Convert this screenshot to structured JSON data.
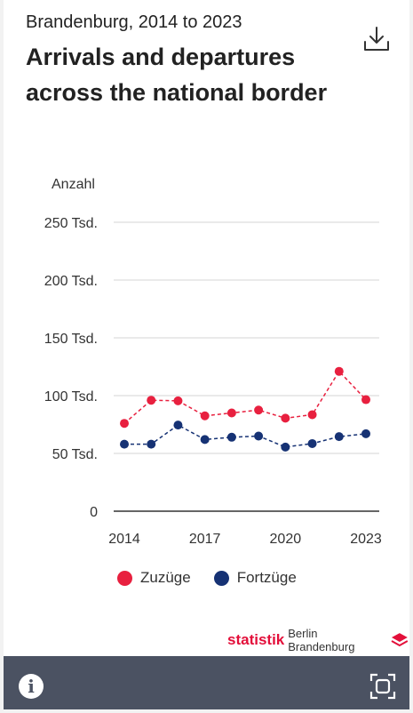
{
  "header": {
    "subtitle": "Brandenburg, 2014 to 2023",
    "title": "Arrivals and departures across the national border"
  },
  "chart_data": {
    "type": "line",
    "unit_label": "Anzahl",
    "x": [
      2014,
      2015,
      2016,
      2017,
      2018,
      2019,
      2020,
      2021,
      2022,
      2023
    ],
    "x_tick_labels": [
      "2014",
      "2017",
      "2020",
      "2023"
    ],
    "x_ticks": [
      2014,
      2017,
      2020,
      2023
    ],
    "y_ticks": [
      0,
      50000,
      100000,
      150000,
      200000,
      250000
    ],
    "y_tick_labels": [
      "0",
      "50 Tsd.",
      "100 Tsd.",
      "150 Tsd.",
      "200 Tsd.",
      "250 Tsd."
    ],
    "ylim": [
      0,
      250000
    ],
    "grid": true,
    "legend_position": "bottom",
    "series": [
      {
        "name": "Zuzüge",
        "color": "#e8203f",
        "values": [
          76000,
          96000,
          95500,
          82500,
          85000,
          87500,
          80500,
          83500,
          121000,
          96500
        ]
      },
      {
        "name": "Fortzüge",
        "color": "#163274",
        "values": [
          58000,
          58000,
          74500,
          62000,
          64000,
          65000,
          55500,
          58500,
          64500,
          67000
        ]
      }
    ]
  },
  "logo": {
    "brand": "statistik",
    "region": "Berlin Brandenburg"
  },
  "icons": {
    "download": "download-icon",
    "info": "info-icon",
    "fullscreen": "fullscreen-icon"
  }
}
